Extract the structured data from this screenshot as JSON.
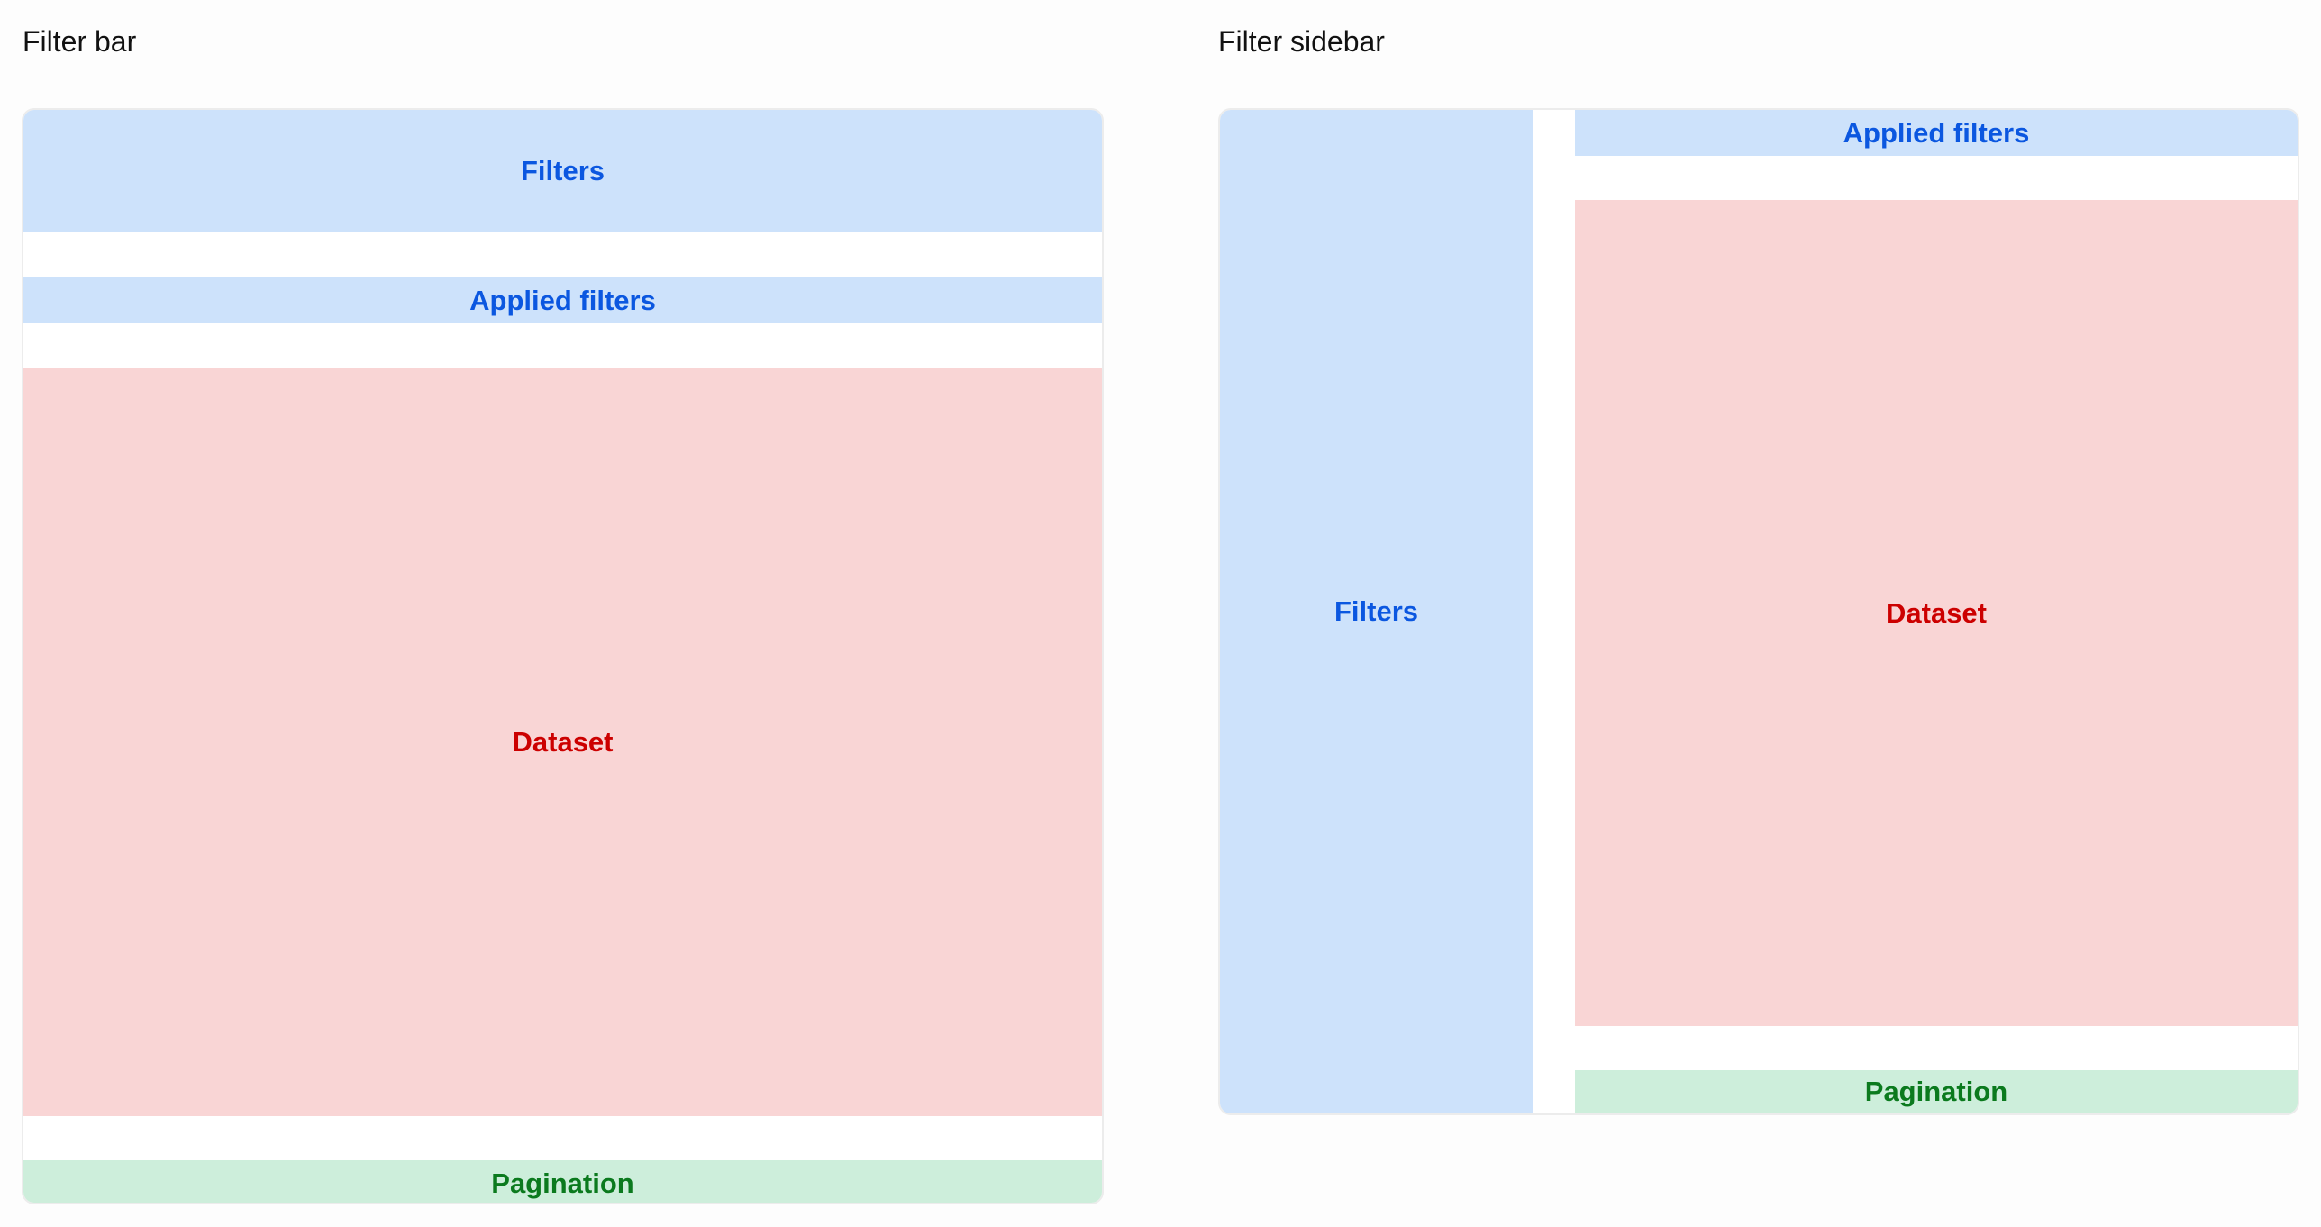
{
  "filter_bar": {
    "title": "Filter bar",
    "filters": "Filters",
    "applied_filters": "Applied filters",
    "dataset": "Dataset",
    "pagination": "Pagination"
  },
  "filter_sidebar": {
    "title": "Filter sidebar",
    "filters": "Filters",
    "applied_filters": "Applied filters",
    "dataset": "Dataset",
    "pagination": "Pagination"
  },
  "colors": {
    "filters_bg": "#cde2fb",
    "filters_text": "#0b57e0",
    "dataset_bg": "#f9d5d5",
    "dataset_text": "#cc0000",
    "pagination_bg": "#cdeedb",
    "pagination_text": "#0b7a1e"
  }
}
